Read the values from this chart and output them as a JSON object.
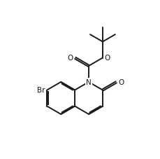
{
  "bg_color": "#ffffff",
  "line_color": "#1a1a1a",
  "line_width": 1.4,
  "font_size": 7.5,
  "figsize": [
    2.3,
    2.28
  ],
  "dpi": 100,
  "xlim": [
    0,
    23
  ],
  "ylim": [
    0,
    22.8
  ]
}
